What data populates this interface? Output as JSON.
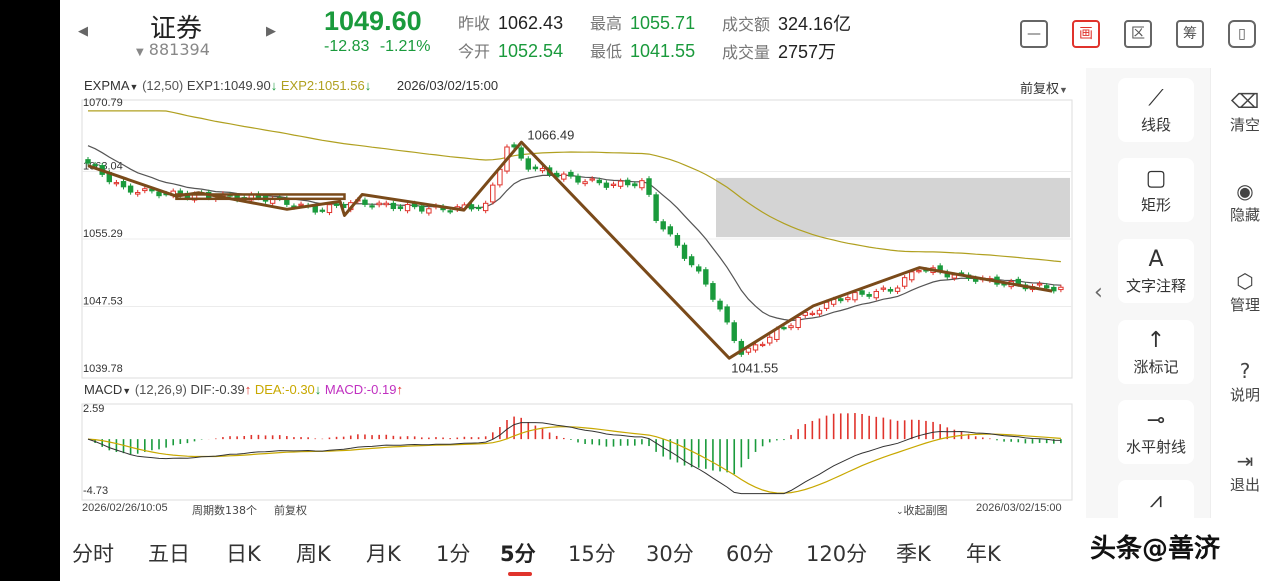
{
  "header": {
    "stock_name": "证券",
    "stock_code": "881394",
    "price": "1049.60",
    "change": "-12.83",
    "change_pct": "-1.21%",
    "stats": {
      "prev_close_label": "昨收",
      "prev_close": "1062.43",
      "open_label": "今开",
      "open": "1052.54",
      "high_label": "最高",
      "high": "1055.71",
      "low_label": "最低",
      "low": "1041.55",
      "amount_label": "成交额",
      "amount": "324.16亿",
      "volume_label": "成交量",
      "volume": "2757万"
    },
    "icons": [
      "minus-square-icon",
      "draw-icon",
      "region-icon",
      "chip-icon",
      "multi-screen-icon"
    ],
    "draw_icon_glyph": "画",
    "region_icon_glyph": "区",
    "chip_icon_glyph": "筹",
    "minus_glyph": "—",
    "multi_glyph": "▯",
    "prev_arrow": "◀",
    "next_arrow": "▶",
    "code_caret": "▼"
  },
  "main_legend": {
    "indicator": "EXPMA",
    "params": "(12,50)",
    "exp1": "EXP1:1049.90",
    "exp2": "EXP2:1051.56",
    "date": "2026/03/02/15:00",
    "adjust": "前复权"
  },
  "macd_legend": {
    "indicator": "MACD",
    "params": "(12,26,9)",
    "dif": "DIF:-0.39",
    "dea": "DEA:-0.30",
    "macd": "MACD:-0.19"
  },
  "footer": {
    "start_time": "2026/02/26/10:05",
    "period_count": "周期数138个",
    "adjust": "前复权",
    "collapse": "收起副图",
    "end_time": "2026/03/02/15:00"
  },
  "chart_data": {
    "type": "candlestick",
    "price_axis_ticks": [
      "1070.79",
      "1063.04",
      "1055.29",
      "1047.53",
      "1039.78"
    ],
    "price_ylim": [
      1039.78,
      1070.79
    ],
    "macd_axis_ticks": [
      "2.59",
      "-4.73"
    ],
    "macd_ylim": [
      -4.73,
      2.59
    ],
    "annotations": [
      {
        "label": "1066.49",
        "type": "high"
      },
      {
        "label": "1041.55",
        "type": "low"
      }
    ],
    "colors": {
      "up": "#e0332c",
      "down": "#1a9a3c",
      "exp1": "#555555",
      "exp2": "#b0a020",
      "trend": "#7a4a1a",
      "dea": "#c8a800",
      "dif": "#333333"
    }
  },
  "tools": {
    "items": [
      {
        "label": "线段",
        "icon": "line-segment-icon",
        "glyph": "⟋"
      },
      {
        "label": "矩形",
        "icon": "rectangle-icon",
        "glyph": "▢"
      },
      {
        "label": "文字注释",
        "icon": "text-annotation-icon",
        "glyph": "A"
      },
      {
        "label": "涨标记",
        "icon": "up-mark-icon",
        "glyph": "↑"
      },
      {
        "label": "水平射线",
        "icon": "horizontal-ray-icon",
        "glyph": "⊸"
      },
      {
        "label": "",
        "icon": "more-tools-icon",
        "glyph": "⩘"
      }
    ],
    "collapse_glyph": "‹"
  },
  "sidebar": {
    "items": [
      {
        "label": "清空",
        "icon": "clear-icon",
        "glyph": "⌫"
      },
      {
        "label": "隐藏",
        "icon": "eye-icon",
        "glyph": "◉"
      },
      {
        "label": "管理",
        "icon": "manage-icon",
        "glyph": "⬡"
      },
      {
        "label": "说明",
        "icon": "help-icon",
        "glyph": "?"
      },
      {
        "label": "退出",
        "icon": "exit-icon",
        "glyph": "⇥"
      }
    ]
  },
  "tabs": {
    "items": [
      "分时",
      "五日",
      "日K",
      "周K",
      "月K",
      "1分",
      "5分",
      "15分",
      "30分",
      "60分",
      "120分",
      "季K",
      "年K"
    ],
    "active": "5分"
  },
  "watermark": "头条@善济"
}
